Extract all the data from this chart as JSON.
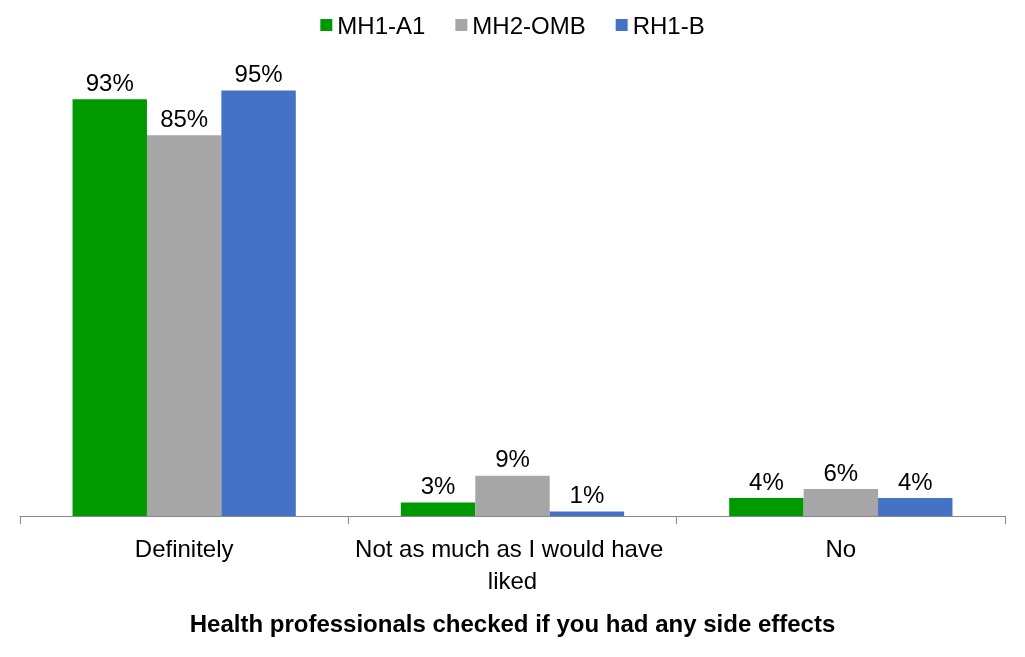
{
  "chart_data": {
    "type": "bar",
    "xlabel": "Health professionals checked if you had any side effects",
    "categories": [
      "Definitely",
      "Not as much as I would have liked",
      "No"
    ],
    "legend": "top",
    "series": [
      {
        "name": "MH1-A1",
        "color": "#009900",
        "values": [
          93,
          3,
          4
        ],
        "value_labels": [
          "93%",
          "3%",
          "4%"
        ]
      },
      {
        "name": "MH2-OMB",
        "color": "#a6a6a6",
        "values": [
          85,
          9,
          6
        ],
        "value_labels": [
          "85%",
          "9%",
          "6%"
        ]
      },
      {
        "name": "RH1-B",
        "color": "#4472c4",
        "values": [
          95,
          1,
          4
        ],
        "value_labels": [
          "95%",
          "1%",
          "4%"
        ]
      }
    ]
  }
}
